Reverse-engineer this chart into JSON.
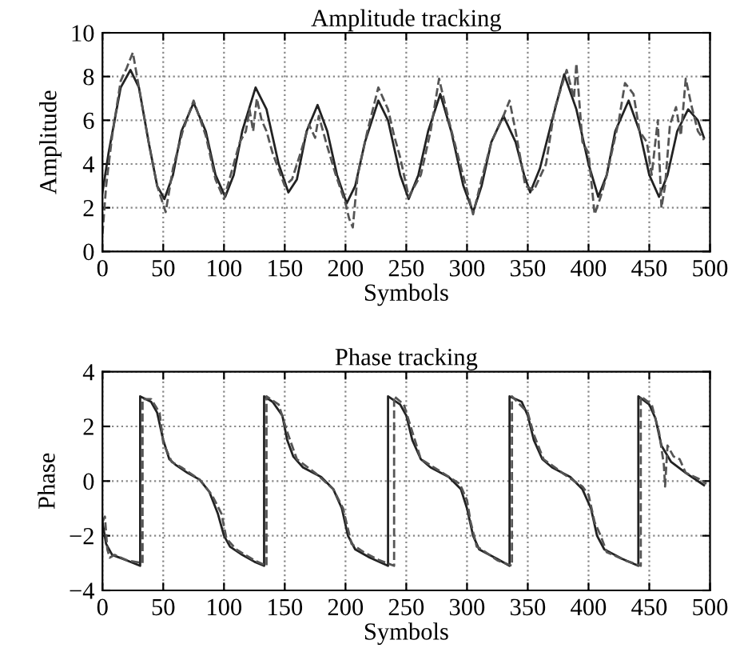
{
  "chart_data": [
    {
      "type": "line",
      "title": "Amplitude tracking",
      "xlabel": "Symbols",
      "ylabel": "Amplitude",
      "xlim": [
        0,
        500
      ],
      "xticks": [
        0,
        50,
        100,
        150,
        200,
        250,
        300,
        350,
        400,
        450,
        500
      ],
      "ylim": [
        0,
        10
      ],
      "yticks": [
        0,
        2,
        4,
        6,
        8,
        10
      ],
      "grid": true,
      "series": [
        {
          "color": "#222222",
          "line_style": "solid",
          "x": [
            0,
            5,
            10,
            15,
            23,
            30,
            38,
            45,
            51,
            58,
            65,
            75,
            85,
            93,
            101,
            108,
            115,
            126,
            135,
            145,
            153,
            160,
            168,
            177,
            185,
            193,
            201,
            208,
            216,
            227,
            235,
            245,
            252,
            260,
            268,
            278,
            287,
            297,
            305,
            312,
            320,
            330,
            340,
            347,
            352,
            360,
            370,
            380,
            390,
            400,
            408,
            415,
            422,
            433,
            442,
            450,
            458,
            465,
            473,
            482,
            490,
            495
          ],
          "values": [
            2.7,
            4.5,
            6,
            7.5,
            8.3,
            7.5,
            5,
            3,
            2.4,
            3.5,
            5.5,
            6.8,
            5.5,
            3.5,
            2.5,
            3.5,
            5.5,
            7.5,
            6.5,
            4,
            2.7,
            3.3,
            5.5,
            6.7,
            5.5,
            3.5,
            2.2,
            3,
            5,
            6.9,
            6,
            3.5,
            2.4,
            3.5,
            5.5,
            7.2,
            5.5,
            3,
            1.8,
            3,
            5,
            6.2,
            5,
            3.5,
            2.7,
            3.8,
            6,
            8.1,
            6.5,
            4,
            2.5,
            3.5,
            5.5,
            6.9,
            5.5,
            3.5,
            2.5,
            3.5,
            5.5,
            6.5,
            6,
            5.2
          ]
        },
        {
          "color": "#555555",
          "line_style": "dashed",
          "x": [
            0,
            3,
            8,
            15,
            20,
            25,
            30,
            38,
            45,
            52,
            58,
            66,
            75,
            85,
            93,
            100,
            108,
            113,
            118,
            121,
            124,
            127,
            131,
            135,
            140,
            150,
            156,
            163,
            170,
            175,
            178,
            185,
            192,
            200,
            203,
            206,
            210,
            218,
            227,
            235,
            240,
            245,
            252,
            262,
            270,
            277,
            285,
            292,
            300,
            305,
            312,
            320,
            330,
            335,
            340,
            348,
            355,
            365,
            372,
            382,
            388,
            390,
            395,
            400,
            405,
            410,
            415,
            425,
            430,
            437,
            442,
            448,
            452,
            457,
            460,
            463,
            467,
            472,
            476,
            480,
            485,
            490,
            495
          ],
          "values": [
            0.8,
            3,
            5.3,
            7.8,
            8.4,
            9.1,
            7.5,
            5,
            3,
            1.8,
            3.8,
            5.5,
            6.9,
            5.3,
            3.3,
            2.4,
            4,
            5,
            5.5,
            6.5,
            5.5,
            7,
            6,
            5.5,
            4.5,
            3,
            3.3,
            4.5,
            5.8,
            5.2,
            6.2,
            4.8,
            3.5,
            2.2,
            1.5,
            1.1,
            3.5,
            5.5,
            7.5,
            6.5,
            5.3,
            4.3,
            2.5,
            3.5,
            5.5,
            7.9,
            6,
            4.5,
            2.8,
            1.7,
            3.3,
            5,
            6.2,
            6.9,
            5.5,
            3,
            2.8,
            4,
            6.5,
            8.3,
            7,
            8.6,
            5,
            4.5,
            1.7,
            2.5,
            3.5,
            6,
            7.7,
            7.2,
            5.5,
            5,
            3.5,
            6,
            2,
            3,
            5.8,
            6.6,
            5.3,
            7.9,
            6.6,
            5.5,
            5.1
          ]
        }
      ]
    },
    {
      "type": "line",
      "title": "Phase tracking",
      "xlabel": "Symbols",
      "ylabel": "Phase",
      "xlim": [
        0,
        500
      ],
      "xticks": [
        0,
        50,
        100,
        150,
        200,
        250,
        300,
        350,
        400,
        450,
        500
      ],
      "ylim": [
        -4,
        4
      ],
      "yticks": [
        {
          "value": -4,
          "label": "−4"
        },
        {
          "value": -2,
          "label": "−2"
        },
        0,
        2,
        4
      ],
      "grid": true,
      "series": [
        {
          "color": "#222222",
          "line_style": "solid",
          "x": [
            0,
            3,
            8,
            20,
            31,
            31,
            40,
            45,
            50,
            55,
            60,
            70,
            80,
            88,
            95,
            100,
            105,
            115,
            125,
            133,
            133,
            140,
            148,
            152,
            157,
            165,
            180,
            190,
            197,
            202,
            208,
            220,
            235,
            235,
            245,
            250,
            255,
            262,
            270,
            285,
            295,
            300,
            305,
            310,
            325,
            335,
            335,
            345,
            350,
            355,
            362,
            370,
            385,
            395,
            402,
            407,
            413,
            428,
            441,
            441,
            450,
            455,
            460,
            468,
            480,
            495
          ],
          "values": [
            -1.5,
            -2.3,
            -2.7,
            -2.9,
            -3.1,
            3.1,
            2.9,
            2.5,
            1.5,
            0.8,
            0.6,
            0.3,
            0.05,
            -0.4,
            -1.2,
            -2,
            -2.4,
            -2.7,
            -2.95,
            -3.1,
            3.1,
            2.9,
            2.4,
            1.5,
            0.9,
            0.5,
            0.15,
            -0.3,
            -1,
            -2,
            -2.5,
            -2.8,
            -3.1,
            3.1,
            2.8,
            2.4,
            1.5,
            0.8,
            0.5,
            0.15,
            -0.3,
            -1,
            -2,
            -2.5,
            -2.85,
            -3.1,
            3.1,
            2.9,
            2.4,
            1.5,
            0.8,
            0.5,
            0.15,
            -0.3,
            -1,
            -2,
            -2.5,
            -2.85,
            -3.1,
            3.1,
            2.8,
            2.3,
            1.3,
            0.7,
            0.3,
            -0.15
          ]
        },
        {
          "color": "#555555",
          "line_style": "dashed",
          "x": [
            0,
            2,
            4,
            6,
            10,
            20,
            33,
            33,
            40,
            47,
            50,
            57,
            65,
            80,
            90,
            98,
            102,
            110,
            125,
            135,
            135,
            145,
            152,
            160,
            175,
            190,
            198,
            205,
            215,
            228,
            240,
            240,
            248,
            255,
            262,
            280,
            294,
            300,
            303,
            308,
            312,
            325,
            337,
            337,
            350,
            355,
            363,
            380,
            395,
            400,
            405,
            410,
            415,
            430,
            443,
            443,
            452,
            458,
            460,
            462,
            463,
            465,
            470,
            475,
            480,
            490,
            497
          ],
          "values": [
            -1.5,
            -1.3,
            -2.5,
            -2.8,
            -2.7,
            -2.9,
            -3,
            3,
            3,
            2.5,
            1.4,
            0.7,
            0.5,
            0.05,
            -0.5,
            -1.2,
            -2.1,
            -2.5,
            -2.9,
            -3.1,
            3.1,
            2.8,
            1.8,
            0.8,
            0.3,
            -0.3,
            -1,
            -2.3,
            -2.6,
            -2.9,
            -3.1,
            3.1,
            2.8,
            1.8,
            0.8,
            0.3,
            -0.1,
            -0.7,
            -1.5,
            -2.4,
            -2.5,
            -2.9,
            -3.1,
            3.1,
            2.5,
            1.7,
            0.8,
            0.25,
            -0.2,
            -0.5,
            -1.5,
            -2,
            -2.6,
            -2.9,
            -3.1,
            3.1,
            2.8,
            1.8,
            1.2,
            0.6,
            -0.2,
            1.3,
            0.9,
            0.8,
            0.3,
            0.1,
            -0.1
          ]
        }
      ]
    }
  ]
}
